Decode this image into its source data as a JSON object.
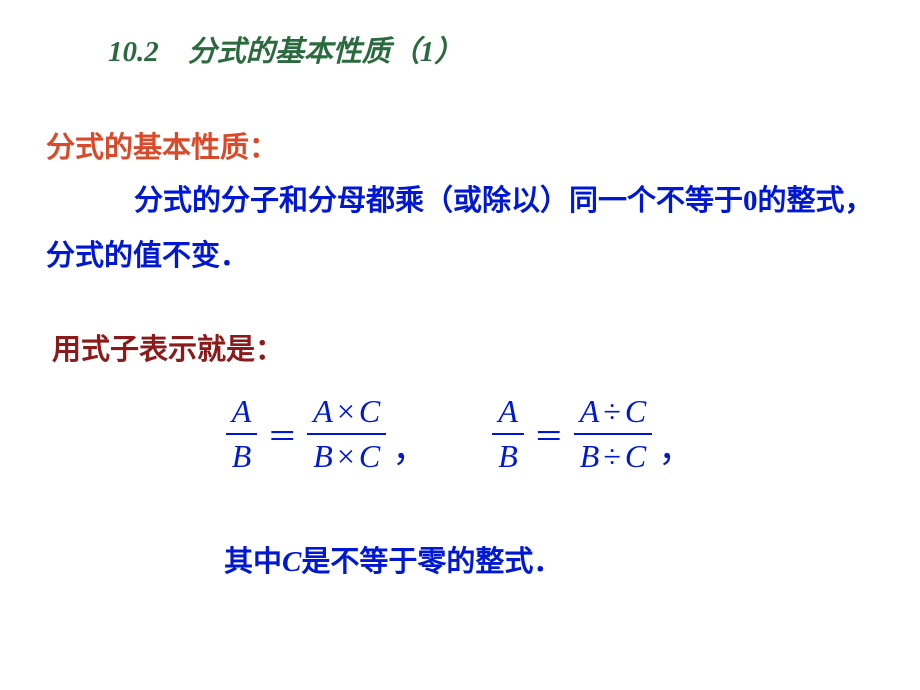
{
  "title": "10.2　分式的基本性质（1）",
  "heading": "分式的基本性质：",
  "body_line": "分式的分子和分母都乘（或除以）同一个不等于0的整式，分式的值不变．",
  "subheading": "用式子表示就是：",
  "formula": {
    "left": {
      "lhs_num": "A",
      "lhs_den": "B",
      "rhs_num_a": "A",
      "rhs_num_op": "×",
      "rhs_num_c": "C",
      "rhs_den_b": "B",
      "rhs_den_op": "×",
      "rhs_den_c": "C"
    },
    "right": {
      "lhs_num": "A",
      "lhs_den": "B",
      "rhs_num_a": "A",
      "rhs_num_op": "÷",
      "rhs_num_c": "C",
      "rhs_den_b": "B",
      "rhs_den_op": "÷",
      "rhs_den_c": "C"
    },
    "equals": "＝",
    "comma": "，"
  },
  "footnote_prefix": "其中",
  "footnote_var": "C",
  "footnote_suffix": "是不等于零的整式．",
  "colors": {
    "title": "#2b6a3e",
    "heading": "#d94a2a",
    "body": "#0018d3",
    "subheading": "#8b1a1a",
    "background": "#ffffff"
  }
}
